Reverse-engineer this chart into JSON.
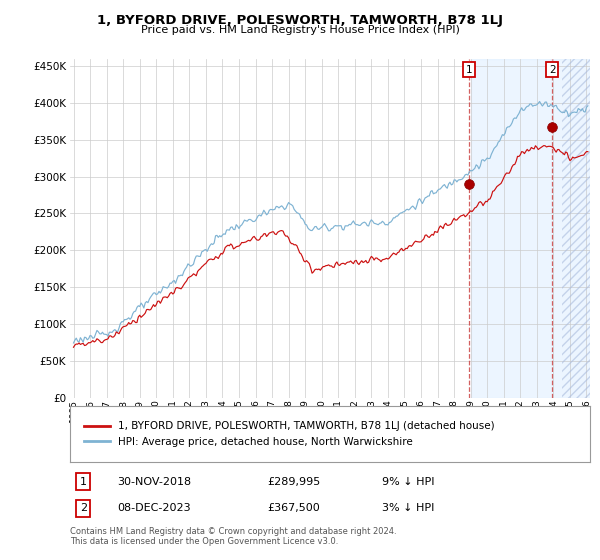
{
  "title": "1, BYFORD DRIVE, POLESWORTH, TAMWORTH, B78 1LJ",
  "subtitle": "Price paid vs. HM Land Registry's House Price Index (HPI)",
  "legend_line1": "1, BYFORD DRIVE, POLESWORTH, TAMWORTH, B78 1LJ (detached house)",
  "legend_line2": "HPI: Average price, detached house, North Warwickshire",
  "annotation1_date": "30-NOV-2018",
  "annotation1_price": "£289,995",
  "annotation1_hpi": "9% ↓ HPI",
  "annotation2_date": "08-DEC-2023",
  "annotation2_price": "£367,500",
  "annotation2_hpi": "3% ↓ HPI",
  "footer": "Contains HM Land Registry data © Crown copyright and database right 2024.\nThis data is licensed under the Open Government Licence v3.0.",
  "sale1_x": 2018.917,
  "sale1_y": 289995,
  "sale2_x": 2023.938,
  "sale2_y": 367500,
  "hpi_color": "#7fb3d3",
  "property_color": "#cc1111",
  "ylim": [
    0,
    460000
  ],
  "xlim": [
    1994.8,
    2026.2
  ],
  "yticks": [
    0,
    50000,
    100000,
    150000,
    200000,
    250000,
    300000,
    350000,
    400000,
    450000
  ],
  "xticks": [
    1995,
    1996,
    1997,
    1998,
    1999,
    2000,
    2001,
    2002,
    2003,
    2004,
    2005,
    2006,
    2007,
    2008,
    2009,
    2010,
    2011,
    2012,
    2013,
    2014,
    2015,
    2016,
    2017,
    2018,
    2019,
    2020,
    2021,
    2022,
    2023,
    2024,
    2025,
    2026
  ],
  "background_color": "#ffffff",
  "grid_color": "#cccccc",
  "shade_start": 2019.0,
  "shade_color": "#ddeeff",
  "hatch_start": 2024.5
}
